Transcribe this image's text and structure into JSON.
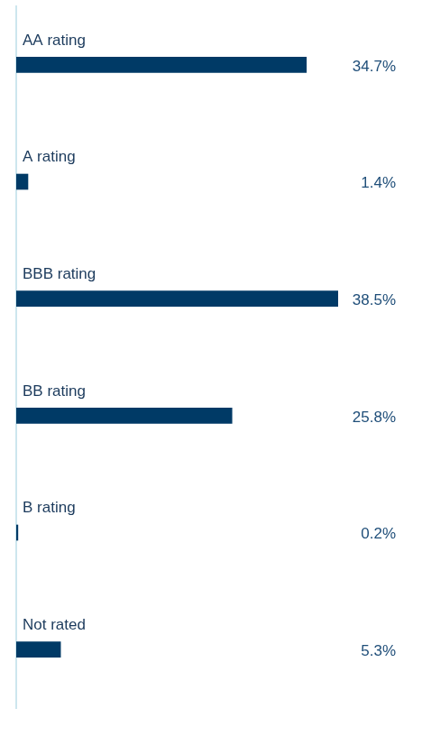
{
  "chart_data": {
    "type": "bar",
    "orientation": "horizontal",
    "categories": [
      "AA rating",
      "A rating",
      "BBB rating",
      "BB rating",
      "B rating",
      "Not rated"
    ],
    "values": [
      34.7,
      1.4,
      38.5,
      25.8,
      0.2,
      5.3
    ],
    "value_labels": [
      "34.7%",
      "1.4%",
      "38.5%",
      "25.8%",
      "0.2%",
      "5.3%"
    ],
    "color": "#003a66",
    "xlim": [
      0,
      38.5
    ],
    "grid": false,
    "data_labels": true,
    "tick_labels": false
  }
}
